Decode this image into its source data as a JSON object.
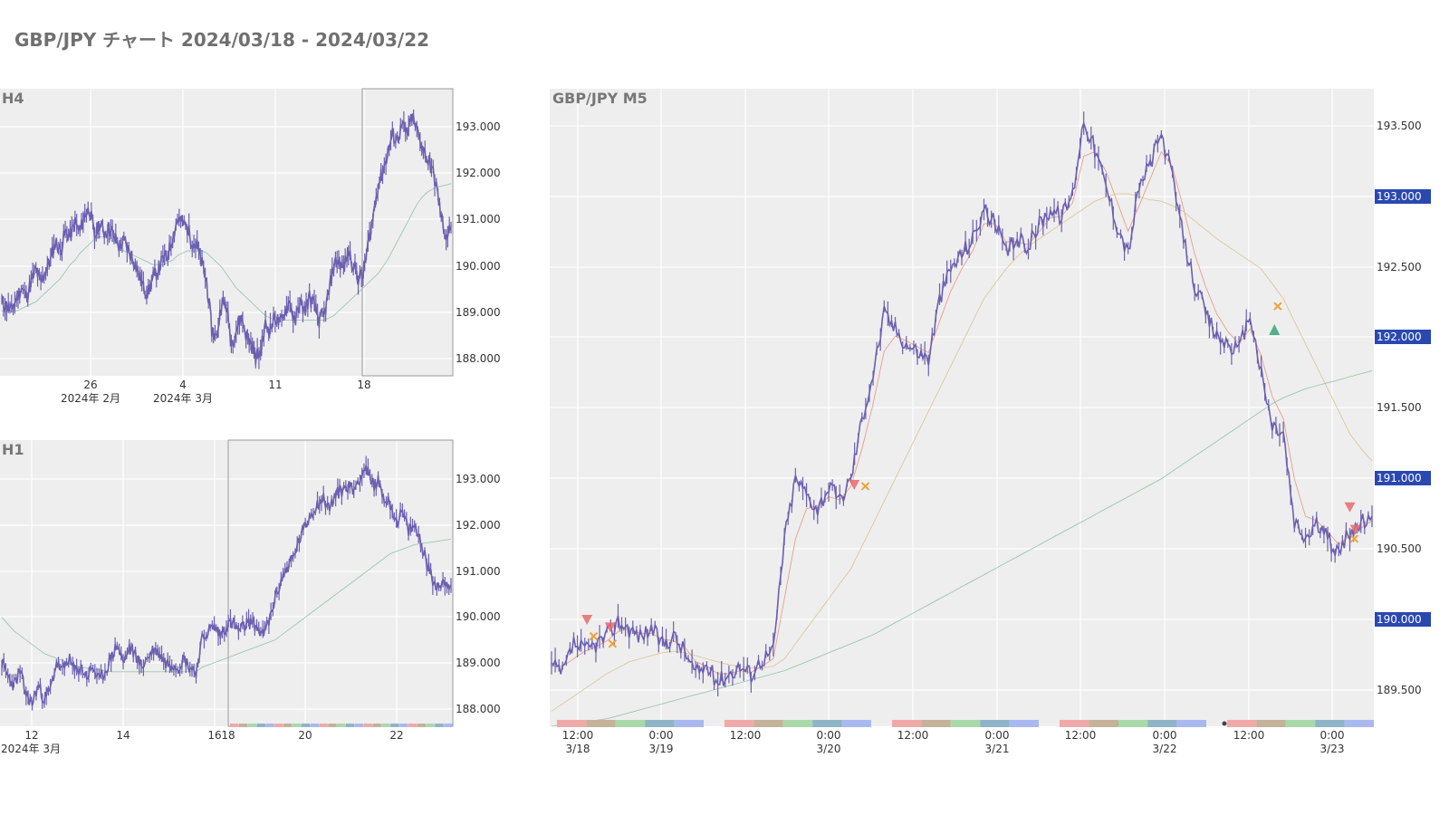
{
  "page": {
    "title": "GBP/JPY チャート 2024/03/18 - 2024/03/22"
  },
  "colors": {
    "background": "#ffffff",
    "plot_bg": "#eeeeee",
    "grid": "#ffffff",
    "candles": "#6a5fb0",
    "ma_fast": "#e8967f",
    "ma_mid": "#d9c48f",
    "ma_slow": "#8fc4a6",
    "sell_marker": "#e86a6a",
    "buy_marker": "#3fa87a",
    "exit_marker": "#f0a23a",
    "price_label_bg": "#2a48b0",
    "price_label_fg": "#ffffff",
    "session_colors": [
      "#f0a9a9",
      "#c4b39a",
      "#a9d9a9",
      "#8fb4c8",
      "#a9b9f0"
    ],
    "event_dot": "#444444",
    "highlight_box": "#999999",
    "tick_text": "#333333",
    "panel_label": "#777777"
  },
  "chart_data": [
    {
      "id": "h4",
      "type": "line",
      "panel_label": "H4",
      "series": [
        {
          "values": [
            189.2,
            189.1,
            189.0,
            189.3,
            189.5,
            189.3,
            189.6,
            189.9,
            189.6,
            189.9,
            190.1,
            190.5,
            190.3,
            190.7,
            190.6,
            190.9,
            190.7,
            191.1,
            191.2,
            190.6,
            190.9,
            190.7,
            190.8,
            190.6,
            190.4,
            190.5,
            190.3,
            190.1,
            189.8,
            189.5,
            189.4,
            189.7,
            189.9,
            190.1,
            190.2,
            190.6,
            191.0,
            190.9,
            190.8,
            190.5,
            190.4,
            190.0,
            189.6,
            188.6,
            188.4,
            189.2,
            189.1,
            188.3,
            188.6,
            188.9,
            188.5,
            188.3,
            188.0,
            188.1,
            188.7,
            188.6,
            188.9,
            188.7,
            189.0,
            189.2,
            188.7,
            189.2,
            189.0,
            189.3,
            189.1,
            188.8,
            188.9,
            189.4,
            190.0,
            190.1,
            189.9,
            190.3,
            190.0,
            189.7,
            189.8,
            190.4,
            191.0,
            191.7,
            192.0,
            192.4,
            192.8,
            192.7,
            193.0,
            192.8,
            193.2,
            192.9,
            192.6,
            192.3,
            192.1,
            191.7,
            191.0,
            190.6,
            190.8
          ]
        },
        {
          "values": [
            189.0,
            189.0,
            189.0,
            189.0,
            189.05,
            189.1,
            189.15,
            189.2,
            189.3,
            189.4,
            189.5,
            189.6,
            189.7,
            189.85,
            190.0,
            190.1,
            190.25,
            190.35,
            190.45,
            190.55,
            190.6,
            190.6,
            190.55,
            190.5,
            190.4,
            190.3,
            190.25,
            190.2,
            190.15,
            190.1,
            190.05,
            190.0,
            190.0,
            190.0,
            190.05,
            190.1,
            190.2,
            190.25,
            190.3,
            190.3,
            190.3,
            190.3,
            190.25,
            190.15,
            190.05,
            189.95,
            189.8,
            189.65,
            189.5,
            189.4,
            189.3,
            189.2,
            189.1,
            189.0,
            188.9,
            188.85,
            188.8,
            188.8,
            188.8,
            188.8,
            188.8,
            188.8,
            188.8,
            188.8,
            188.8,
            188.8,
            188.8,
            188.85,
            188.9,
            189.0,
            189.1,
            189.2,
            189.3,
            189.4,
            189.5,
            189.6,
            189.7,
            189.8,
            189.95,
            190.1,
            190.3,
            190.5,
            190.7,
            190.9,
            191.1,
            191.3,
            191.45,
            191.55,
            191.62,
            191.67,
            191.7,
            191.72,
            191.75
          ]
        }
      ],
      "ylim": [
        187.6,
        193.8
      ],
      "y_ticks": [
        "193.000",
        "192.000",
        "191.000",
        "190.000",
        "189.000",
        "188.000"
      ],
      "x_ticks": [
        "26",
        "4",
        "11",
        "18"
      ],
      "x_ticks_sub": [
        "2024年 2月",
        "2024年 3月"
      ]
    },
    {
      "id": "h1",
      "type": "line",
      "panel_label": "H1",
      "series": [
        {
          "values": [
            189.0,
            188.7,
            188.5,
            188.8,
            188.3,
            188.1,
            188.5,
            188.2,
            188.4,
            189.0,
            188.8,
            189.1,
            188.8,
            188.9,
            188.7,
            188.9,
            188.6,
            188.8,
            189.1,
            189.4,
            189.0,
            189.3,
            189.2,
            188.9,
            189.1,
            189.3,
            189.2,
            189.0,
            189.0,
            188.9,
            189.1,
            188.9,
            188.8,
            189.5,
            189.7,
            189.8,
            189.6,
            189.8,
            189.9,
            189.7,
            189.8,
            189.9,
            189.8,
            189.6,
            189.9,
            190.4,
            190.8,
            191.1,
            191.3,
            191.7,
            192.0,
            192.3,
            192.5,
            192.6,
            192.4,
            192.7,
            192.8,
            192.9,
            192.8,
            193.1,
            193.3,
            192.9,
            193.0,
            192.6,
            192.5,
            192.1,
            192.3,
            191.9,
            192.0,
            191.7,
            191.2,
            190.8,
            190.7,
            190.8,
            190.7
          ]
        },
        {
          "values": [
            190.0,
            189.85,
            189.7,
            189.6,
            189.5,
            189.4,
            189.3,
            189.2,
            189.15,
            189.1,
            189.05,
            189.0,
            188.95,
            188.9,
            188.88,
            188.86,
            188.84,
            188.82,
            188.8,
            188.8,
            188.8,
            188.8,
            188.8,
            188.8,
            188.8,
            188.8,
            188.8,
            188.8,
            188.8,
            188.8,
            188.8,
            188.8,
            188.8,
            188.9,
            188.95,
            189.0,
            189.05,
            189.1,
            189.15,
            189.2,
            189.25,
            189.3,
            189.35,
            189.4,
            189.45,
            189.5,
            189.6,
            189.7,
            189.8,
            189.9,
            190.0,
            190.1,
            190.2,
            190.3,
            190.4,
            190.5,
            190.6,
            190.7,
            190.8,
            190.9,
            191.0,
            191.1,
            191.2,
            191.3,
            191.4,
            191.45,
            191.5,
            191.55,
            191.6,
            191.62,
            191.64,
            191.66,
            191.68,
            191.7,
            191.72
          ]
        }
      ],
      "ylim": [
        187.6,
        193.9
      ],
      "y_ticks": [
        "193.000",
        "192.000",
        "191.000",
        "190.000",
        "189.000",
        "188.000"
      ],
      "x_ticks": [
        "12",
        "14",
        "16",
        "18",
        "20",
        "22"
      ],
      "x_ticks_sub": [
        "2024年 3月"
      ]
    },
    {
      "id": "m5",
      "type": "line",
      "panel_label": "GBP/JPY M5",
      "series": [
        {
          "values": [
            189.75,
            189.7,
            189.9,
            189.85,
            189.9,
            189.95,
            190.05,
            190.0,
            189.95,
            190.0,
            189.9,
            189.95,
            189.85,
            189.7,
            189.75,
            189.65,
            189.7,
            189.75,
            189.7,
            189.8,
            189.85,
            190.6,
            191.0,
            190.9,
            190.8,
            190.95,
            190.85,
            191.0,
            191.4,
            191.7,
            192.1,
            192.0,
            191.9,
            191.85,
            191.8,
            192.2,
            192.4,
            192.5,
            192.6,
            192.8,
            192.7,
            192.5,
            192.6,
            192.55,
            192.7,
            192.8,
            192.75,
            192.9,
            193.4,
            193.2,
            192.95,
            192.7,
            192.5,
            192.95,
            193.1,
            193.3,
            193.0,
            192.6,
            192.3,
            192.1,
            191.95,
            191.9,
            191.85,
            192.1,
            191.7,
            191.35,
            191.3,
            190.7,
            190.6,
            190.7,
            190.6,
            190.5,
            190.65,
            190.7,
            190.75
          ]
        },
        {
          "values": [
            189.75,
            189.75,
            189.8,
            189.85,
            189.88,
            189.92,
            189.98,
            190.0,
            189.97,
            189.97,
            189.93,
            189.92,
            189.88,
            189.78,
            189.75,
            189.7,
            189.7,
            189.72,
            189.71,
            189.75,
            189.8,
            190.2,
            190.6,
            190.8,
            190.82,
            190.88,
            190.86,
            190.95,
            191.2,
            191.5,
            191.85,
            191.95,
            191.92,
            191.88,
            191.84,
            192.05,
            192.25,
            192.4,
            192.52,
            192.7,
            192.7,
            192.58,
            192.58,
            192.56,
            192.65,
            192.74,
            192.75,
            192.84,
            193.15,
            193.18,
            193.05,
            192.85,
            192.65,
            192.82,
            193.0,
            193.18,
            193.08,
            192.8,
            192.5,
            192.28,
            192.1,
            191.98,
            191.9,
            192.0,
            191.82,
            191.55,
            191.4,
            191.0,
            190.75,
            190.72,
            190.65,
            190.56,
            190.62,
            190.67,
            190.72
          ]
        },
        {
          "values": [
            189.45,
            189.5,
            189.55,
            189.6,
            189.65,
            189.7,
            189.74,
            189.78,
            189.8,
            189.82,
            189.84,
            189.85,
            189.84,
            189.82,
            189.8,
            189.78,
            189.76,
            189.75,
            189.74,
            189.74,
            189.75,
            189.8,
            189.9,
            190.0,
            190.1,
            190.2,
            190.3,
            190.4,
            190.55,
            190.7,
            190.85,
            191.0,
            191.15,
            191.3,
            191.45,
            191.6,
            191.75,
            191.9,
            192.05,
            192.2,
            192.3,
            192.4,
            192.48,
            192.55,
            192.6,
            192.65,
            192.7,
            192.75,
            192.8,
            192.85,
            192.88,
            192.9,
            192.9,
            192.88,
            192.86,
            192.85,
            192.82,
            192.78,
            192.72,
            192.66,
            192.6,
            192.55,
            192.5,
            192.45,
            192.4,
            192.3,
            192.2,
            192.05,
            191.9,
            191.75,
            191.6,
            191.45,
            191.3,
            191.2,
            191.12
          ]
        },
        {
          "values": [
            189.35,
            189.36,
            189.37,
            189.38,
            189.39,
            189.4,
            189.42,
            189.44,
            189.46,
            189.48,
            189.5,
            189.52,
            189.54,
            189.56,
            189.58,
            189.6,
            189.62,
            189.64,
            189.66,
            189.68,
            189.7,
            189.72,
            189.75,
            189.78,
            189.81,
            189.84,
            189.87,
            189.9,
            189.93,
            189.96,
            190.0,
            190.04,
            190.08,
            190.12,
            190.16,
            190.2,
            190.24,
            190.28,
            190.32,
            190.36,
            190.4,
            190.44,
            190.48,
            190.52,
            190.56,
            190.6,
            190.64,
            190.68,
            190.72,
            190.76,
            190.8,
            190.84,
            190.88,
            190.92,
            190.96,
            191.0,
            191.05,
            191.1,
            191.15,
            191.2,
            191.25,
            191.3,
            191.35,
            191.4,
            191.45,
            191.5,
            191.54,
            191.57,
            191.6,
            191.62,
            191.64,
            191.66,
            191.68,
            191.7,
            191.72
          ]
        }
      ],
      "ylim": [
        189.35,
        193.6
      ],
      "y_ticks": [
        "193.500",
        "193.000",
        "192.500",
        "192.000",
        "191.500",
        "191.000",
        "190.500",
        "190.000",
        "189.500"
      ],
      "y_ticks_highlighted": [
        "193.000",
        "192.000",
        "191.000",
        "190.000"
      ],
      "x_ticks": [
        "12:00",
        "0:00",
        "12:00",
        "0:00",
        "12:00",
        "0:00",
        "12:00",
        "0:00",
        "12:00",
        "0:00"
      ],
      "x_ticks_sub": [
        "3/18",
        "3/19",
        "3/20",
        "3/21",
        "3/22",
        "3/23"
      ],
      "sell_markers": [
        {
          "x": 3.2,
          "y": 190.05
        },
        {
          "x": 5.3,
          "y": 190.0
        },
        {
          "x": 27.3,
          "y": 190.95
        },
        {
          "x": 72.0,
          "y": 190.8
        },
        {
          "x": 72.5,
          "y": 190.65
        }
      ],
      "buy_markers": [
        {
          "x": 65.2,
          "y": 192.0
        }
      ],
      "exit_markers": [
        {
          "x": 3.8,
          "y": 189.95
        },
        {
          "x": 5.5,
          "y": 189.9
        },
        {
          "x": 28.3,
          "y": 190.95
        },
        {
          "x": 65.5,
          "y": 192.15
        },
        {
          "x": 72.4,
          "y": 190.6
        }
      ]
    }
  ]
}
